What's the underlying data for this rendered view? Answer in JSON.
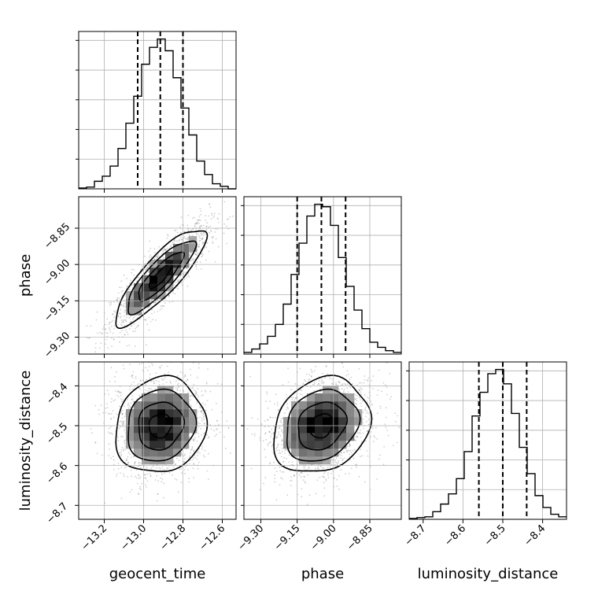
{
  "chart_data": {
    "type": "corner",
    "parameters": [
      "geocent_time",
      "phase",
      "luminosity_distance"
    ],
    "axis_labels": {
      "geocent_time": "geocent_time",
      "phase": "phase",
      "luminosity_distance": "luminosity_distance"
    },
    "ranges": {
      "geocent_time": [
        -13.33,
        -12.53
      ],
      "phase": [
        -9.37,
        -8.72
      ],
      "luminosity_distance": [
        -8.735,
        -8.34
      ]
    },
    "ticks": {
      "geocent_time": [
        -13.2,
        -13.0,
        -12.8,
        -12.6
      ],
      "phase": [
        -9.3,
        -9.15,
        -9.0,
        -8.85
      ],
      "luminosity_distance": [
        -8.7,
        -8.6,
        -8.5,
        -8.4
      ]
    },
    "tick_labels": {
      "geocent_time": [
        "−13.2",
        "−13.0",
        "−12.8",
        "−12.6"
      ],
      "phase": [
        "−9.30",
        "−9.15",
        "−9.00",
        "−8.85"
      ],
      "luminosity_distance": [
        "−8.7",
        "−8.6",
        "−8.5",
        "−8.4"
      ]
    },
    "quantiles": {
      "geocent_time": [
        -13.03,
        -12.915,
        -12.8
      ],
      "phase": [
        -9.15,
        -9.05,
        -8.95
      ],
      "luminosity_distance": [
        -8.56,
        -8.5,
        -8.44
      ]
    },
    "histograms": {
      "geocent_time": {
        "bin_edges": [
          -13.33,
          -13.29,
          -13.25,
          -13.21,
          -13.17,
          -13.13,
          -13.09,
          -13.05,
          -13.01,
          -12.97,
          -12.93,
          -12.89,
          -12.85,
          -12.81,
          -12.77,
          -12.73,
          -12.69,
          -12.65,
          -12.61,
          -12.57,
          -12.53
        ],
        "counts": [
          1,
          2,
          9,
          15,
          27,
          48,
          78,
          110,
          148,
          168,
          178,
          164,
          132,
          96,
          64,
          33,
          17,
          6,
          3,
          0
        ]
      },
      "phase": {
        "bin_edges": [
          -9.37,
          -9.3375,
          -9.305,
          -9.2725,
          -9.24,
          -9.2075,
          -9.175,
          -9.1425,
          -9.11,
          -9.0775,
          -9.045,
          -9.0125,
          -8.98,
          -8.9475,
          -8.915,
          -8.8825,
          -8.85,
          -8.8175,
          -8.785,
          -8.7525,
          -8.72
        ],
        "counts": [
          2,
          6,
          12,
          21,
          35,
          59,
          94,
          131,
          163,
          177,
          174,
          152,
          114,
          80,
          52,
          30,
          14,
          8,
          4,
          2
        ]
      },
      "luminosity_distance": {
        "bin_edges": [
          -8.735,
          -8.71525,
          -8.6955,
          -8.67575,
          -8.656,
          -8.63625,
          -8.6165,
          -8.59675,
          -8.577,
          -8.55725,
          -8.5375,
          -8.51775,
          -8.498,
          -8.47825,
          -8.4585,
          -8.43875,
          -8.419,
          -8.39925,
          -8.3795,
          -8.35975,
          -8.34
        ],
        "counts": [
          1,
          2,
          3,
          9,
          18,
          30,
          48,
          80,
          122,
          150,
          172,
          177,
          160,
          125,
          85,
          54,
          28,
          14,
          6,
          3
        ]
      }
    },
    "correlations": {
      "geocent_time|phase": 0.85,
      "geocent_time|luminosity_distance": 0.1,
      "phase|luminosity_distance": 0.2
    },
    "contour_levels": [
      0.5,
      1.0,
      1.5,
      2.0
    ],
    "grid": true
  }
}
